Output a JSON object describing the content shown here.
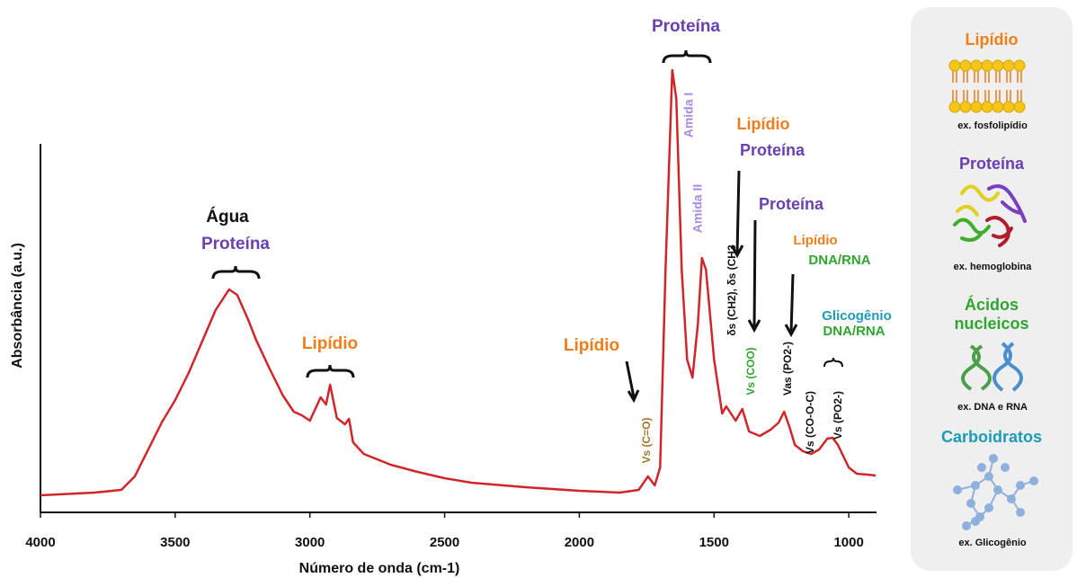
{
  "chart_data": {
    "type": "line",
    "x_label": "Número de onda (cm-1)",
    "y_label": "Absorbância (a.u.)",
    "xlim": [
      4000,
      897
    ],
    "ylim": [
      0,
      1
    ],
    "xticks": [
      4000,
      3500,
      3000,
      2500,
      2000,
      1500,
      1000
    ],
    "color": "#d0262b",
    "x": [
      4000,
      3800,
      3700,
      3650,
      3600,
      3550,
      3500,
      3450,
      3400,
      3350,
      3300,
      3270,
      3230,
      3200,
      3150,
      3100,
      3060,
      3030,
      3000,
      2960,
      2940,
      2925,
      2900,
      2870,
      2855,
      2840,
      2800,
      2700,
      2600,
      2500,
      2400,
      2200,
      2000,
      1850,
      1780,
      1745,
      1720,
      1700,
      1680,
      1655,
      1640,
      1620,
      1600,
      1580,
      1560,
      1545,
      1530,
      1500,
      1470,
      1455,
      1420,
      1395,
      1370,
      1330,
      1290,
      1260,
      1240,
      1220,
      1200,
      1170,
      1140,
      1110,
      1080,
      1060,
      1040,
      1000,
      970,
      930,
      900
    ],
    "values": [
      0.038,
      0.044,
      0.05,
      0.08,
      0.14,
      0.2,
      0.25,
      0.31,
      0.38,
      0.45,
      0.496,
      0.484,
      0.43,
      0.384,
      0.32,
      0.26,
      0.224,
      0.216,
      0.204,
      0.256,
      0.24,
      0.284,
      0.21,
      0.196,
      0.208,
      0.156,
      0.13,
      0.106,
      0.09,
      0.076,
      0.066,
      0.056,
      0.048,
      0.044,
      0.05,
      0.08,
      0.06,
      0.1,
      0.54,
      0.984,
      0.92,
      0.54,
      0.34,
      0.3,
      0.42,
      0.566,
      0.54,
      0.34,
      0.22,
      0.236,
      0.204,
      0.23,
      0.18,
      0.17,
      0.184,
      0.2,
      0.224,
      0.19,
      0.15,
      0.136,
      0.13,
      0.14,
      0.164,
      0.166,
      0.15,
      0.1,
      0.086,
      0.084,
      0.082
    ],
    "annotations": [
      {
        "text": "Proteína",
        "color": "#6a3fb0"
      },
      {
        "text": "Água",
        "color": "#111111"
      },
      {
        "text": "Proteína",
        "color": "#6a3fb0"
      },
      {
        "text": "Lipídio",
        "color": "#ef7d1a"
      },
      {
        "text": "Lipídio",
        "color": "#ef7d1a"
      },
      {
        "text": "Amida I",
        "color": "#a98be0"
      },
      {
        "text": "Amida II",
        "color": "#a98be0"
      },
      {
        "text": "Lipídio",
        "color": "#ef7d1a"
      },
      {
        "text": "Proteína",
        "color": "#6a3fb0"
      },
      {
        "text": "Proteína",
        "color": "#6a3fb0"
      },
      {
        "text": "Lipídio",
        "color": "#ef7d1a"
      },
      {
        "text": "DNA/RNA",
        "color": "#2fa52f"
      },
      {
        "text": "Glicogênio",
        "color": "#1e9bb5"
      },
      {
        "text": "DNA/RNA",
        "color": "#2fa52f"
      },
      {
        "text": "Vs (C=O)",
        "color": "#a2742a"
      },
      {
        "text": "δs (CH2), δs (CH3",
        "color": "#111111"
      },
      {
        "text": "Vs (COO)",
        "color": "#2fa52f"
      },
      {
        "text": "Vas (PO2-)",
        "color": "#111111"
      },
      {
        "text": "Vs (CO-O-C)",
        "color": "#111111"
      },
      {
        "text": "Vs (PO2-)",
        "color": "#111111"
      }
    ]
  },
  "legend_panel": [
    {
      "title": [
        "Lipídio"
      ],
      "color": "#ef7d1a",
      "example": "ex. fosfolipídio"
    },
    {
      "title": [
        "Proteína"
      ],
      "color": "#6a3fb0",
      "example": "ex. hemoglobina"
    },
    {
      "title": [
        "Ácidos",
        "nucleicos"
      ],
      "color": "#2fa52f",
      "example": "ex. DNA e RNA"
    },
    {
      "title": [
        "Carboidratos"
      ],
      "color": "#1e9bb5",
      "example": "ex. Glicogênio"
    }
  ]
}
